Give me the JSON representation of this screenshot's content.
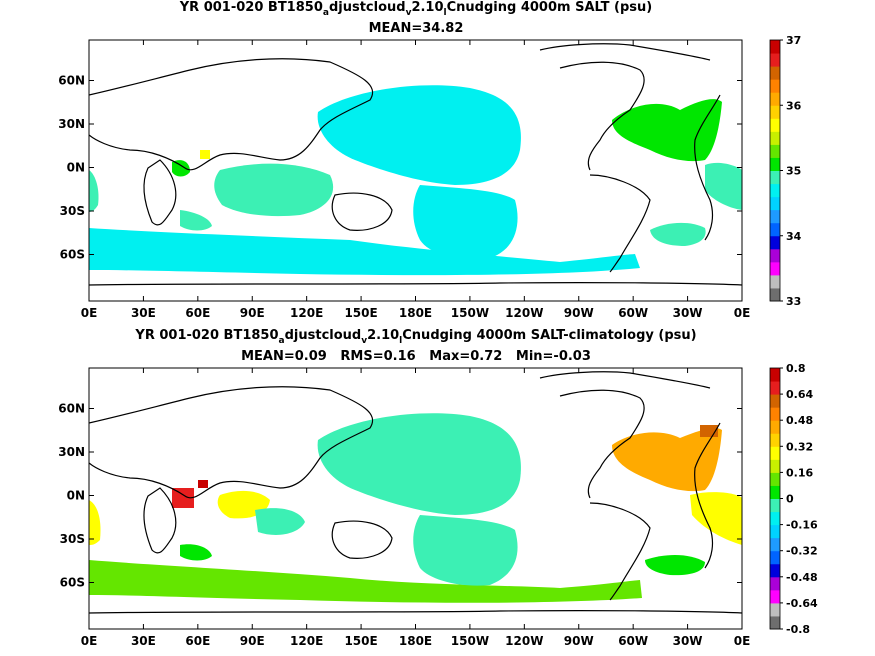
{
  "colors": {
    "land": "#ffffff",
    "coast": "#000000"
  },
  "chart_data": [
    {
      "type": "heatmap",
      "title": "YR 001-020 BT1850",
      "title_parts": {
        "p1": "YR 001-020 BT1850",
        "s1": "a",
        "p2": "djustcloud",
        "s2": "v",
        "p3": "2.10",
        "s3": "l",
        "p4": "Cnudging 4000m SALT (psu)"
      },
      "subtitle": "MEAN=34.82",
      "xticks": [
        "0E",
        "30E",
        "60E",
        "90E",
        "120E",
        "150E",
        "180E",
        "150W",
        "120W",
        "90W",
        "60W",
        "30W",
        "0E"
      ],
      "yticks": [
        "60N",
        "30N",
        "0N",
        "30S",
        "60S"
      ],
      "colorbar": {
        "ticks": [
          "37",
          "36",
          "35",
          "34",
          "33"
        ],
        "min": 33,
        "max": 37,
        "colors": [
          "#6e6e6e",
          "#bebebe",
          "#ff00ff",
          "#aa00d8",
          "#0000dc",
          "#0064ff",
          "#1e9bff",
          "#00d2ff",
          "#00f0f0",
          "#3cf0b4",
          "#00e600",
          "#64e600",
          "#c8f000",
          "#ffff00",
          "#ffd200",
          "#ffaa00",
          "#ff8200",
          "#d26400",
          "#e61e1e",
          "#c80000"
        ]
      },
      "regions": [
        {
          "name": "north-pacific",
          "value": 34.6,
          "color": "#00f0f0"
        },
        {
          "name": "south-pacific",
          "value": 34.6,
          "color": "#00f0f0"
        },
        {
          "name": "southern-ocean",
          "value": 34.6,
          "color": "#00f0f0"
        },
        {
          "name": "indian-ocean",
          "value": 34.8,
          "color": "#3cf0b4"
        },
        {
          "name": "north-atlantic",
          "value": 35.0,
          "color": "#00e600"
        },
        {
          "name": "south-atlantic",
          "value": 34.9,
          "color": "#3cf0b4"
        },
        {
          "name": "arabian-sea",
          "value": 35.9,
          "color": "#ffff00"
        }
      ]
    },
    {
      "type": "heatmap",
      "title": "YR 001-020 BT1850",
      "title_parts": {
        "p1": "YR 001-020 BT1850",
        "s1": "a",
        "p2": "djustcloud",
        "s2": "v",
        "p3": "2.10",
        "s3": "l",
        "p4": "Cnudging 4000m SALT-climatology (psu)"
      },
      "subtitle": "MEAN=0.09   RMS=0.16   Max=0.72   Min=-0.03",
      "xticks": [
        "0E",
        "30E",
        "60E",
        "90E",
        "120E",
        "150E",
        "180E",
        "150W",
        "120W",
        "90W",
        "60W",
        "30W",
        "0E"
      ],
      "yticks": [
        "60N",
        "30N",
        "0N",
        "30S",
        "60S"
      ],
      "colorbar": {
        "ticks": [
          "0.8",
          "0.64",
          "0.48",
          "0.32",
          "0.16",
          "0",
          "-0.16",
          "-0.32",
          "-0.48",
          "-0.64",
          "-0.8"
        ],
        "min": -0.8,
        "max": 0.8,
        "colors": [
          "#6e6e6e",
          "#bebebe",
          "#ff00ff",
          "#aa00d8",
          "#0000dc",
          "#0064ff",
          "#1e9bff",
          "#00d2ff",
          "#00f0f0",
          "#3cf0b4",
          "#00e600",
          "#64e600",
          "#c8f000",
          "#ffff00",
          "#ffd200",
          "#ffaa00",
          "#ff8200",
          "#d26400",
          "#e61e1e",
          "#c80000"
        ]
      },
      "regions": [
        {
          "name": "north-pacific",
          "value": 0.05,
          "color": "#3cf0b4"
        },
        {
          "name": "south-pacific",
          "value": 0.05,
          "color": "#3cf0b4"
        },
        {
          "name": "southern-ocean",
          "value": 0.1,
          "color": "#64e600"
        },
        {
          "name": "indian-ocean",
          "value": 0.25,
          "color": "#ffff00"
        },
        {
          "name": "north-atlantic",
          "value": 0.4,
          "color": "#ffaa00"
        },
        {
          "name": "south-atlantic",
          "value": 0.2,
          "color": "#ffff00"
        },
        {
          "name": "arabian-sea",
          "value": 0.72,
          "color": "#e61e1e"
        }
      ]
    }
  ]
}
